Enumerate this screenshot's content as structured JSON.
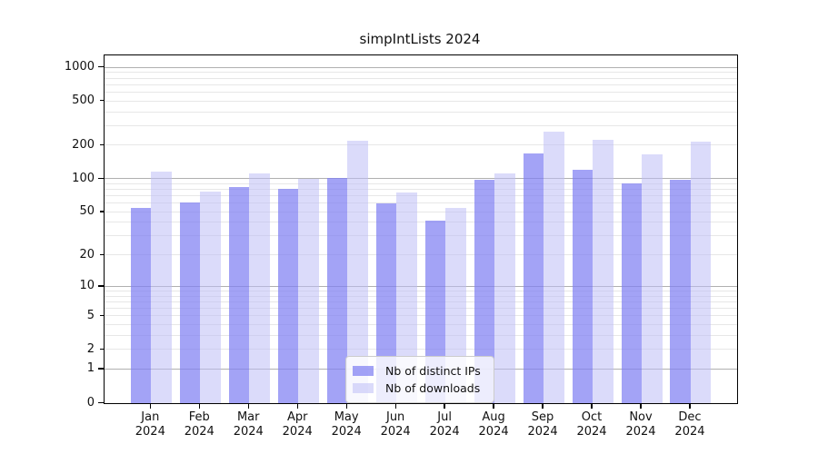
{
  "title": "simpIntLists 2024",
  "legend": {
    "items": [
      {
        "label": "Nb of distinct IPs"
      },
      {
        "label": "Nb of downloads"
      }
    ]
  },
  "chart_data": {
    "type": "bar",
    "title": "simpIntLists 2024",
    "categories": [
      "Jan",
      "Feb",
      "Mar",
      "Apr",
      "May",
      "Jun",
      "Jul",
      "Aug",
      "Sep",
      "Oct",
      "Nov",
      "Dec"
    ],
    "category_year": "2024",
    "series": [
      {
        "name": "Nb of distinct IPs",
        "color": "rgba(127,127,242,0.72)",
        "values": [
          55,
          61,
          85,
          82,
          103,
          60,
          42,
          98,
          170,
          121,
          92,
          98
        ]
      },
      {
        "name": "Nb of downloads",
        "color": "rgba(190,190,245,0.55)",
        "values": [
          116,
          77,
          113,
          101,
          220,
          75,
          55,
          113,
          268,
          225,
          166,
          218
        ]
      }
    ],
    "y_axis": {
      "scale": "log10(value+1)",
      "tick_values": [
        0,
        1,
        2,
        5,
        10,
        20,
        50,
        100,
        200,
        500,
        1000
      ],
      "major_tick_values": [
        0,
        1,
        10,
        100,
        1000
      ],
      "minor_grid_values": [
        2,
        3,
        4,
        5,
        6,
        7,
        8,
        9,
        20,
        30,
        40,
        50,
        60,
        70,
        80,
        90,
        200,
        300,
        400,
        500,
        600,
        700,
        800,
        900
      ],
      "major_grid_values": [
        1,
        10,
        100,
        1000
      ],
      "top_value": 1290,
      "major_grid_color": "#b0b0b0",
      "minor_grid_color": "#e7e7e7"
    },
    "x_axis": {
      "grid": false
    },
    "legend_position": "lower center",
    "ylim": [
      0,
      1290
    ]
  }
}
